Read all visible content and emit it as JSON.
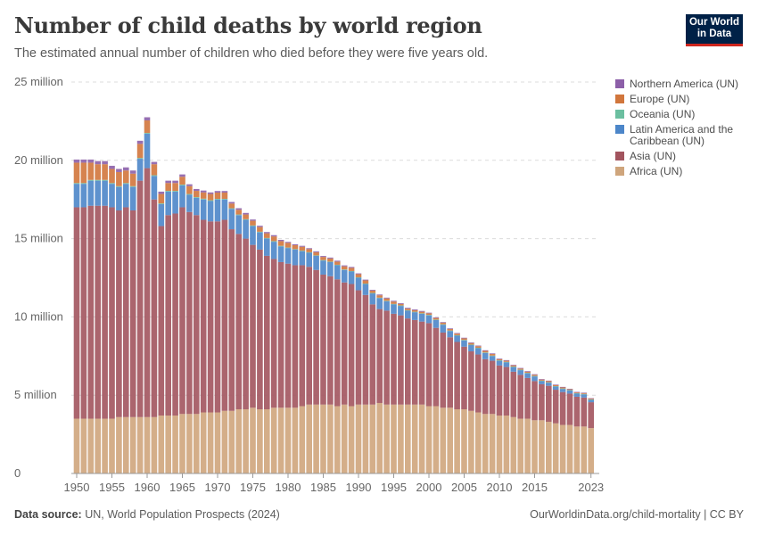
{
  "header": {
    "title": "Number of child deaths by world region",
    "subtitle": "The estimated annual number of children who died before they were five years old.",
    "logo_text": "Our World in Data"
  },
  "footer": {
    "source_label": "Data source:",
    "source": "UN, World Population Prospects (2024)",
    "link": "OurWorldinData.org/child-mortality | CC BY"
  },
  "chart_data": {
    "type": "bar",
    "stacked": true,
    "title": "Number of child deaths by world region",
    "ylim": [
      0,
      25000000
    ],
    "y_ticks": [
      0,
      5000000,
      10000000,
      15000000,
      20000000,
      25000000
    ],
    "y_tick_labels": [
      "0",
      "5 million",
      "10 million",
      "15 million",
      "20 million",
      "25 million"
    ],
    "x_tick_labels": [
      "1950",
      "1955",
      "1960",
      "1965",
      "1970",
      "1975",
      "1980",
      "1985",
      "1990",
      "1995",
      "2000",
      "2005",
      "2010",
      "2015",
      "2023"
    ],
    "grid": "horizontal dashed",
    "legend_position": "right",
    "years_range": [
      1950,
      2023
    ],
    "unit": "million",
    "series": [
      {
        "name": "Africa (UN)",
        "color": "#cfa57c",
        "values": [
          3.5,
          3.5,
          3.5,
          3.5,
          3.5,
          3.5,
          3.6,
          3.6,
          3.6,
          3.6,
          3.6,
          3.6,
          3.7,
          3.7,
          3.7,
          3.8,
          3.8,
          3.8,
          3.9,
          3.9,
          3.9,
          4.0,
          4.0,
          4.1,
          4.1,
          4.2,
          4.1,
          4.1,
          4.2,
          4.2,
          4.2,
          4.2,
          4.3,
          4.4,
          4.4,
          4.4,
          4.4,
          4.3,
          4.4,
          4.3,
          4.4,
          4.4,
          4.4,
          4.5,
          4.4,
          4.4,
          4.4,
          4.4,
          4.4,
          4.4,
          4.3,
          4.3,
          4.2,
          4.2,
          4.1,
          4.1,
          4.0,
          3.9,
          3.8,
          3.8,
          3.7,
          3.7,
          3.6,
          3.5,
          3.5,
          3.4,
          3.4,
          3.3,
          3.2,
          3.1,
          3.1,
          3.0,
          3.0,
          2.9
        ]
      },
      {
        "name": "Asia (UN)",
        "color": "#a2545e",
        "values": [
          13.5,
          13.5,
          13.6,
          13.6,
          13.6,
          13.5,
          13.2,
          13.4,
          13.2,
          15.1,
          15.9,
          13.9,
          12.1,
          12.8,
          12.9,
          13.2,
          12.9,
          12.7,
          12.3,
          12.2,
          12.2,
          12.2,
          11.6,
          11.2,
          10.9,
          10.4,
          10.2,
          9.8,
          9.5,
          9.3,
          9.2,
          9.1,
          9.0,
          8.8,
          8.6,
          8.3,
          8.2,
          8.1,
          7.8,
          7.8,
          7.3,
          7.0,
          6.4,
          6.0,
          6.0,
          5.8,
          5.7,
          5.5,
          5.4,
          5.3,
          5.3,
          5.0,
          4.8,
          4.5,
          4.3,
          4.0,
          3.8,
          3.7,
          3.5,
          3.4,
          3.2,
          3.1,
          2.9,
          2.8,
          2.6,
          2.5,
          2.3,
          2.3,
          2.15,
          2.1,
          2.0,
          1.9,
          1.85,
          1.65
        ]
      },
      {
        "name": "Latin America and the Caribbean (UN)",
        "color": "#4c86c9",
        "values": [
          1.5,
          1.5,
          1.6,
          1.6,
          1.6,
          1.5,
          1.5,
          1.5,
          1.5,
          1.4,
          2.2,
          1.5,
          1.4,
          1.5,
          1.4,
          1.4,
          1.1,
          1.1,
          1.3,
          1.3,
          1.4,
          1.3,
          1.3,
          1.2,
          1.2,
          1.2,
          1.1,
          1.1,
          1.1,
          1.0,
          1.0,
          1.0,
          0.9,
          0.9,
          0.9,
          0.9,
          0.9,
          0.9,
          0.8,
          0.8,
          0.8,
          0.7,
          0.7,
          0.7,
          0.6,
          0.6,
          0.6,
          0.5,
          0.5,
          0.5,
          0.5,
          0.5,
          0.5,
          0.4,
          0.4,
          0.4,
          0.4,
          0.4,
          0.4,
          0.3,
          0.3,
          0.3,
          0.3,
          0.3,
          0.3,
          0.3,
          0.2,
          0.2,
          0.2,
          0.2,
          0.2,
          0.2,
          0.2,
          0.15
        ]
      },
      {
        "name": "Oceania (UN)",
        "color": "#6bbfa0",
        "values": [
          0.05,
          0.05,
          0.05,
          0.05,
          0.05,
          0.05,
          0.05,
          0.05,
          0.05,
          0.05,
          0.05,
          0.05,
          0.05,
          0.05,
          0.05,
          0.05,
          0.05,
          0.05,
          0.05,
          0.05,
          0.04,
          0.04,
          0.04,
          0.04,
          0.04,
          0.04,
          0.04,
          0.04,
          0.04,
          0.04,
          0.03,
          0.03,
          0.03,
          0.03,
          0.03,
          0.03,
          0.03,
          0.03,
          0.03,
          0.03,
          0.03,
          0.03,
          0.03,
          0.03,
          0.03,
          0.03,
          0.03,
          0.03,
          0.03,
          0.03,
          0.03,
          0.03,
          0.03,
          0.03,
          0.03,
          0.03,
          0.03,
          0.03,
          0.03,
          0.03,
          0.03,
          0.03,
          0.03,
          0.03,
          0.03,
          0.03,
          0.03,
          0.03,
          0.03,
          0.03,
          0.03,
          0.03,
          0.03,
          0.03
        ]
      },
      {
        "name": "Europe (UN)",
        "color": "#d1763c",
        "values": [
          1.3,
          1.3,
          1.1,
          1.0,
          1.0,
          0.9,
          0.9,
          0.8,
          0.8,
          0.9,
          0.8,
          0.7,
          0.6,
          0.5,
          0.5,
          0.5,
          0.5,
          0.4,
          0.4,
          0.4,
          0.4,
          0.4,
          0.3,
          0.3,
          0.3,
          0.3,
          0.3,
          0.3,
          0.3,
          0.3,
          0.3,
          0.25,
          0.25,
          0.2,
          0.2,
          0.2,
          0.2,
          0.2,
          0.2,
          0.2,
          0.2,
          0.2,
          0.15,
          0.15,
          0.15,
          0.15,
          0.1,
          0.1,
          0.1,
          0.1,
          0.1,
          0.1,
          0.1,
          0.1,
          0.1,
          0.1,
          0.1,
          0.1,
          0.1,
          0.1,
          0.07,
          0.07,
          0.07,
          0.07,
          0.07,
          0.07,
          0.07,
          0.07,
          0.07,
          0.07,
          0.05,
          0.05,
          0.05,
          0.05
        ]
      },
      {
        "name": "Northern America (UN)",
        "color": "#8c5fa8",
        "values": [
          0.2,
          0.2,
          0.2,
          0.2,
          0.2,
          0.2,
          0.2,
          0.2,
          0.2,
          0.2,
          0.2,
          0.15,
          0.15,
          0.15,
          0.15,
          0.15,
          0.12,
          0.12,
          0.12,
          0.1,
          0.1,
          0.1,
          0.1,
          0.1,
          0.1,
          0.08,
          0.08,
          0.08,
          0.08,
          0.08,
          0.06,
          0.06,
          0.06,
          0.06,
          0.06,
          0.06,
          0.06,
          0.06,
          0.06,
          0.06,
          0.05,
          0.05,
          0.05,
          0.05,
          0.05,
          0.05,
          0.05,
          0.05,
          0.05,
          0.05,
          0.04,
          0.04,
          0.04,
          0.04,
          0.04,
          0.04,
          0.04,
          0.04,
          0.04,
          0.04,
          0.04,
          0.04,
          0.04,
          0.04,
          0.04,
          0.04,
          0.03,
          0.03,
          0.03,
          0.03,
          0.03,
          0.03,
          0.03,
          0.03
        ]
      }
    ],
    "legend_order": [
      "Northern America (UN)",
      "Europe (UN)",
      "Oceania (UN)",
      "Latin America and the Caribbean (UN)",
      "Asia (UN)",
      "Africa (UN)"
    ]
  }
}
